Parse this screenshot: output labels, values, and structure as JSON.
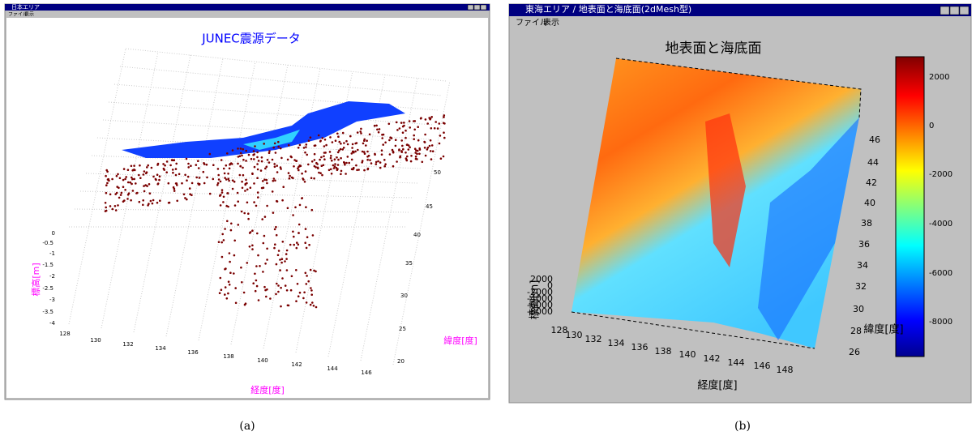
{
  "figures": [
    {
      "window_title": "日本エリア",
      "menu": [
        "ファイル",
        "表示"
      ],
      "plot_title": "JUNEC震源データ",
      "x_label": "経度[度]",
      "y_label": "緯度[度]",
      "z_label": "標高[m]",
      "x_ticks": [
        128,
        130,
        132,
        134,
        136,
        138,
        140,
        142,
        144,
        146
      ],
      "y_ticks": [
        20,
        25,
        30,
        35,
        40,
        45,
        50
      ],
      "z_ticks": [
        0,
        -0.5,
        -1,
        -1.5,
        -2,
        -2.5,
        -3,
        -3.5,
        -4
      ],
      "caption": "(a)"
    },
    {
      "window_title": "東海エリア / 地表面と海底面(2dMesh型)",
      "menu": [
        "ファイル",
        "表示"
      ],
      "plot_title": "地表面と海底面",
      "x_label": "経度[度]",
      "y_label": "緯度[度]",
      "z_label": "標高[m]",
      "x_ticks": [
        128,
        130,
        132,
        134,
        136,
        138,
        140,
        142,
        144,
        146,
        148
      ],
      "y_ticks": [
        46,
        44,
        42,
        40,
        38,
        36,
        34,
        32,
        30,
        28,
        26
      ],
      "z_ticks": [
        2000,
        0,
        -2000,
        -4000,
        -6000,
        -8000
      ],
      "colorbar_ticks": [
        2000,
        0,
        -2000,
        -4000,
        -6000,
        -8000
      ],
      "caption": "(b)"
    }
  ]
}
